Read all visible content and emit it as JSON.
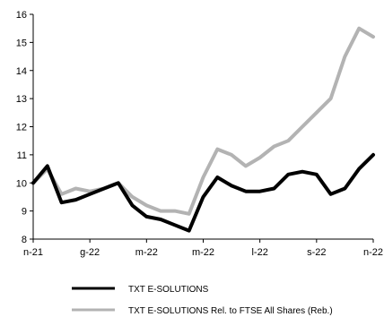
{
  "chart_data": {
    "type": "line",
    "title": "",
    "xlabel": "",
    "ylabel": "",
    "ylim": [
      8,
      16
    ],
    "yticks": [
      8,
      9,
      10,
      11,
      12,
      13,
      14,
      15,
      16
    ],
    "x_tick_labels": [
      "n-21",
      "g-22",
      "m-22",
      "m-22",
      "l-22",
      "s-22",
      "n-22"
    ],
    "grid": false,
    "legend_position": "bottom",
    "series": [
      {
        "name": "TXT E-SOLUTIONS",
        "color": "#000000",
        "x": [
          0,
          0.5,
          1,
          1.5,
          2,
          2.5,
          3,
          3.5,
          4,
          4.5,
          5,
          5.5,
          6,
          6.5,
          7,
          7.5,
          8,
          8.5,
          9,
          9.5,
          10,
          10.5,
          11,
          11.5,
          12
        ],
        "values": [
          10.0,
          10.6,
          9.3,
          9.4,
          9.6,
          9.8,
          10.0,
          9.2,
          8.8,
          8.7,
          8.5,
          8.3,
          9.5,
          10.2,
          9.9,
          9.7,
          9.7,
          9.8,
          10.3,
          10.4,
          10.3,
          9.6,
          9.8,
          10.5,
          11.0
        ]
      },
      {
        "name": "TXT E-SOLUTIONS Rel. to FTSE All Shares (Reb.)",
        "color": "#b3b3b3",
        "x": [
          0,
          0.5,
          1,
          1.5,
          2,
          2.5,
          3,
          3.5,
          4,
          4.5,
          5,
          5.5,
          6,
          6.5,
          7,
          7.5,
          8,
          8.5,
          9,
          9.5,
          10,
          10.5,
          11,
          11.5,
          12
        ],
        "values": [
          10.0,
          10.5,
          9.6,
          9.8,
          9.7,
          9.8,
          10.0,
          9.5,
          9.2,
          9.0,
          9.0,
          8.9,
          10.2,
          11.2,
          11.0,
          10.6,
          10.9,
          11.3,
          11.5,
          12.0,
          12.5,
          13.0,
          14.5,
          15.5,
          15.2
        ]
      }
    ]
  }
}
